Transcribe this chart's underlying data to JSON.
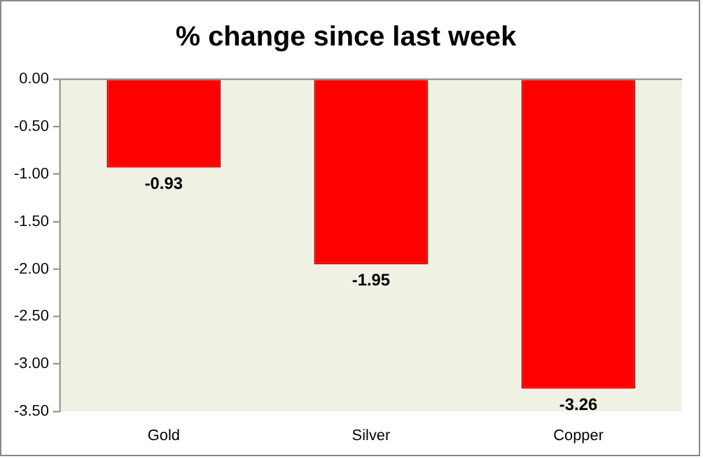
{
  "chart_data": {
    "type": "bar",
    "title": "% change since last week",
    "categories": [
      "Gold",
      "Silver",
      "Copper"
    ],
    "values": [
      -0.93,
      -1.95,
      -3.26
    ],
    "color": "#ff0000",
    "ylim": [
      -3.5,
      0
    ],
    "yticks": [
      {
        "value": 0,
        "label": "0.00"
      },
      {
        "value": -0.5,
        "label": "-0.50"
      },
      {
        "value": -1,
        "label": "-1.00"
      },
      {
        "value": -1.5,
        "label": "-1.50"
      },
      {
        "value": -2,
        "label": "-2.00"
      },
      {
        "value": -2.5,
        "label": "-2.50"
      },
      {
        "value": -3,
        "label": "-3.00"
      },
      {
        "value": -3.5,
        "label": "-3.50"
      }
    ],
    "grid": false,
    "legend": false,
    "data_labels": true
  }
}
